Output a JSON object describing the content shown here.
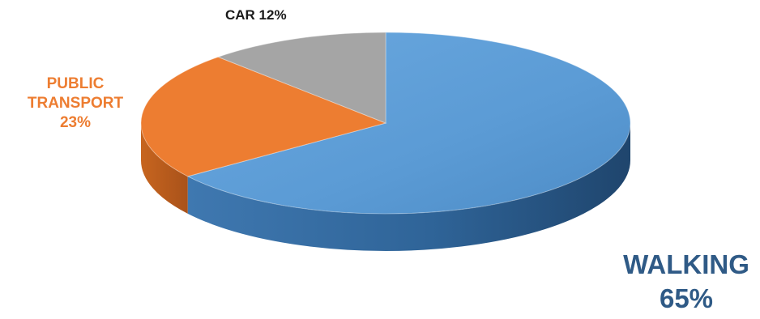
{
  "chart_data": {
    "type": "pie",
    "style": "3d",
    "start_angle_deg": 0,
    "direction": "clockwise",
    "slices": [
      {
        "name": "WALKING",
        "value": 65,
        "value_label": "65%",
        "color": "#5b9bd5",
        "side_color": "#2e5f8f",
        "label_color": "#2f5a86"
      },
      {
        "name": "PUBLIC TRANSPORT",
        "name_lines": [
          "PUBLIC",
          "TRANSPORT"
        ],
        "value": 23,
        "value_label": "23%",
        "color": "#ed7d31",
        "side_color": "#b0561c",
        "label_color": "#ed7d31"
      },
      {
        "name": "CAR",
        "value": 12,
        "value_label": "12%",
        "color": "#a5a5a5",
        "side_color": "#7a7a7a",
        "label_color": "#1a1a1a"
      }
    ],
    "legend": "none",
    "data_labels": "outside"
  }
}
